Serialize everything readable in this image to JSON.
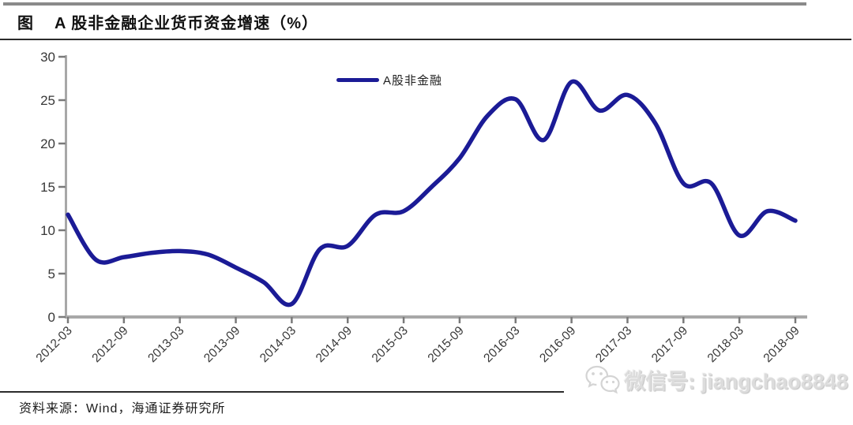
{
  "header": {
    "figure_label": "图",
    "title": "A 股非金融企业货币资金增速（%）"
  },
  "legend": {
    "label": "A股非金融"
  },
  "footer": {
    "source": "资料来源：Wind，海通证券研究所"
  },
  "watermark": {
    "icon": "wechat-icon",
    "text": "微信号: jiangchao8848"
  },
  "colors": {
    "line": "#1b1b96",
    "axis": "#a8a8a8",
    "tick": "#7a7a7a",
    "text": "#383838",
    "rule": "#2b2b2b",
    "top_bar": "#8a8a8a",
    "watermark": "#dcdcdc"
  },
  "chart_data": {
    "type": "line",
    "title": "A 股非金融企业货币资金增速（%）",
    "xlabel": "",
    "ylabel": "",
    "ylim": [
      0,
      30
    ],
    "y_ticks": [
      0,
      5,
      10,
      15,
      20,
      25,
      30
    ],
    "grid": false,
    "legend_position": "top-center",
    "x_tick_labels": [
      "2012-03",
      "2012-09",
      "2013-03",
      "2013-09",
      "2014-03",
      "2014-09",
      "2015-03",
      "2015-09",
      "2016-03",
      "2016-09",
      "2017-03",
      "2017-09",
      "2018-03",
      "2018-09"
    ],
    "x": [
      "2012-03",
      "2012-06",
      "2012-09",
      "2012-12",
      "2013-03",
      "2013-06",
      "2013-09",
      "2013-12",
      "2014-03",
      "2014-06",
      "2014-09",
      "2014-12",
      "2015-03",
      "2015-06",
      "2015-09",
      "2015-12",
      "2016-03",
      "2016-06",
      "2016-09",
      "2016-12",
      "2017-03",
      "2017-06",
      "2017-09",
      "2017-12",
      "2018-03",
      "2018-06",
      "2018-09"
    ],
    "series": [
      {
        "name": "A股非金融",
        "values": [
          11.8,
          6.6,
          6.9,
          7.4,
          7.6,
          7.2,
          5.7,
          4.0,
          1.5,
          7.8,
          8.2,
          11.8,
          12.2,
          15.0,
          18.3,
          23.2,
          25.1,
          20.4,
          27.1,
          23.8,
          25.6,
          22.3,
          15.4,
          15.4,
          9.4,
          12.2,
          11.1
        ]
      }
    ]
  }
}
